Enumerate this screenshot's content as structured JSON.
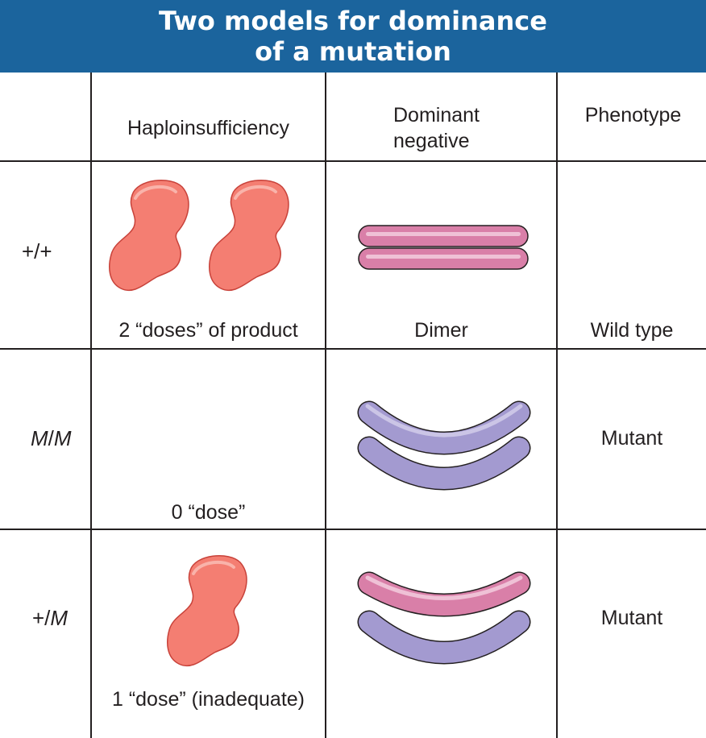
{
  "title": {
    "line1": "Two models for dominance",
    "line2": "of a mutation"
  },
  "column_headers": {
    "haploinsufficiency": "Haploinsufficiency",
    "dominant_negative_line1": "Dominant",
    "dominant_negative_line2": "negative",
    "phenotype": "Phenotype"
  },
  "rows": [
    {
      "genotype_a": "+/+",
      "genotype_b": "",
      "dose_caption": "2 “doses” of product",
      "protein_caption": "Dimer",
      "phenotype": "Wild type",
      "blob_count": 2,
      "dimer": "wild-type straight dimer"
    },
    {
      "genotype_a": "M",
      "genotype_b": "M",
      "dose_caption": "0 “dose”",
      "protein_caption": "",
      "phenotype": "Mutant",
      "blob_count": 0,
      "dimer": "mutant curved dimer"
    },
    {
      "genotype_a": "+/",
      "genotype_b": "M",
      "dose_caption": "1 “dose” (inadequate)",
      "protein_caption": "",
      "phenotype": "Mutant",
      "blob_count": 1,
      "dimer": "mixed curved dimer"
    }
  ],
  "colors": {
    "banner": "#1b649d",
    "protein_blob": "#f47e72",
    "wild_type_subunit": "#d97fa8",
    "mutant_subunit": "#a39ad0",
    "grid_lines": "#231f20"
  }
}
